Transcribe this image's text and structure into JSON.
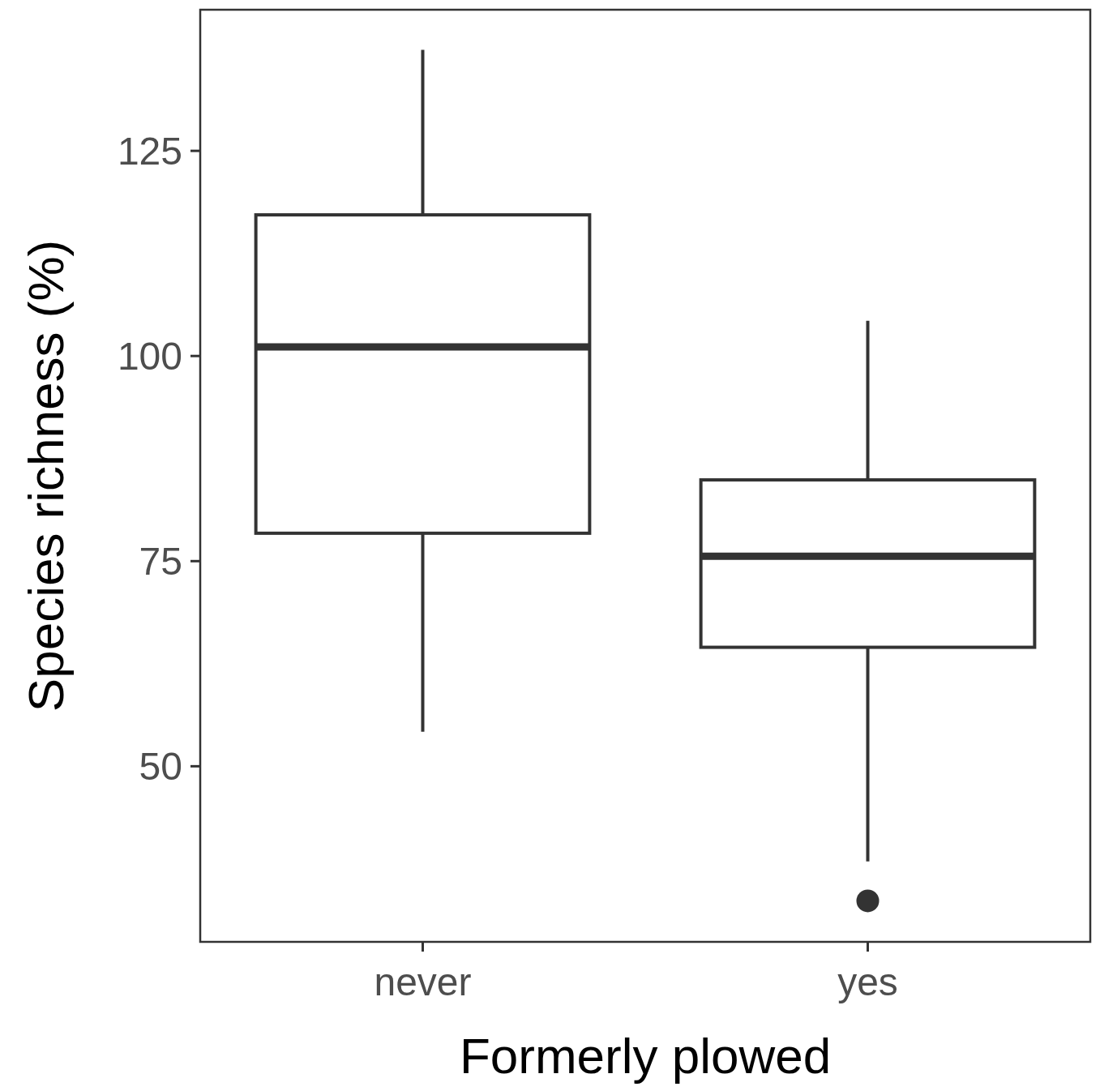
{
  "chart_data": {
    "type": "box",
    "xlabel": "Formerly plowed",
    "ylabel": "Species richness (%)",
    "categories": [
      "never",
      "yes"
    ],
    "boxes": [
      {
        "low": 54.2,
        "q1": 78.4,
        "median": 101.1,
        "q3": 117.2,
        "high": 137.3
      },
      {
        "low": 38.4,
        "q1": 64.5,
        "median": 75.6,
        "q3": 84.9,
        "high": 104.3,
        "outliers": [
          33.6
        ]
      }
    ],
    "color": "#333333",
    "ylim": [
      28.6,
      142.2
    ],
    "yticks": [
      50,
      75,
      100,
      125
    ],
    "grid": false
  }
}
